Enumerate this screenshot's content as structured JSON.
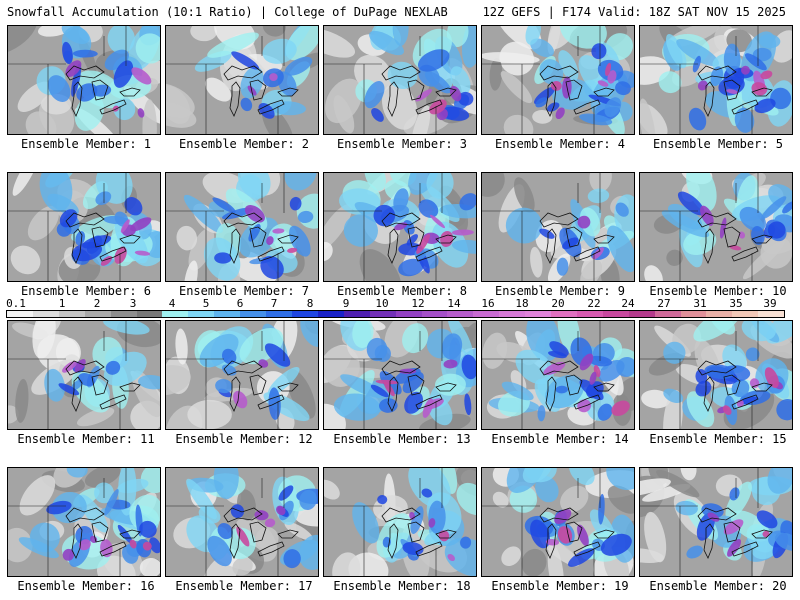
{
  "header": {
    "title_left": "Snowfall Accumulation (10:1 Ratio) | College of DuPage NEXLAB",
    "title_right": "12Z GEFS | F174 Valid: 18Z SAT NOV 15 2025"
  },
  "members": [
    {
      "label": "Ensemble Member: 1",
      "intensity": 2
    },
    {
      "label": "Ensemble Member: 2",
      "intensity": 1
    },
    {
      "label": "Ensemble Member: 3",
      "intensity": 2
    },
    {
      "label": "Ensemble Member: 4",
      "intensity": 3
    },
    {
      "label": "Ensemble Member: 5",
      "intensity": 3
    },
    {
      "label": "Ensemble Member: 6",
      "intensity": 3
    },
    {
      "label": "Ensemble Member: 7",
      "intensity": 2
    },
    {
      "label": "Ensemble Member: 8",
      "intensity": 3
    },
    {
      "label": "Ensemble Member: 9",
      "intensity": 1
    },
    {
      "label": "Ensemble Member: 10",
      "intensity": 2
    },
    {
      "label": "Ensemble Member: 11",
      "intensity": 1
    },
    {
      "label": "Ensemble Member: 12",
      "intensity": 1
    },
    {
      "label": "Ensemble Member: 13",
      "intensity": 3
    },
    {
      "label": "Ensemble Member: 14",
      "intensity": 3
    },
    {
      "label": "Ensemble Member: 15",
      "intensity": 3
    },
    {
      "label": "Ensemble Member: 16",
      "intensity": 3
    },
    {
      "label": "Ensemble Member: 17",
      "intensity": 2
    },
    {
      "label": "Ensemble Member: 18",
      "intensity": 2
    },
    {
      "label": "Ensemble Member: 19",
      "intensity": 2
    },
    {
      "label": "Ensemble Member: 20",
      "intensity": 2
    }
  ],
  "colorbar": {
    "ticks": [
      "0.1",
      "1",
      "2",
      "3",
      "4",
      "5",
      "6",
      "7",
      "8",
      "9",
      "10",
      "12",
      "14",
      "16",
      "18",
      "20",
      "22",
      "24",
      "27",
      "31",
      "35",
      "39"
    ],
    "colors": [
      "#f2f2f2",
      "#dcdcdc",
      "#c4c4c4",
      "#a9a9a9",
      "#8e8e8e",
      "#777777",
      "#9ff0f0",
      "#7fd6f5",
      "#5fb4ee",
      "#4690ea",
      "#2f6ee6",
      "#1f46e2",
      "#1a22c8",
      "#4f1fb0",
      "#7330b8",
      "#9240c2",
      "#a44fc8",
      "#b65ccc",
      "#c96bd3",
      "#d87ad8",
      "#e083da",
      "#e070c0",
      "#d85ab0",
      "#c8489e",
      "#b43a8c",
      "#d06a9a",
      "#e0909a",
      "#eab0a8",
      "#f2c8b8",
      "#f8e0d4"
    ]
  }
}
